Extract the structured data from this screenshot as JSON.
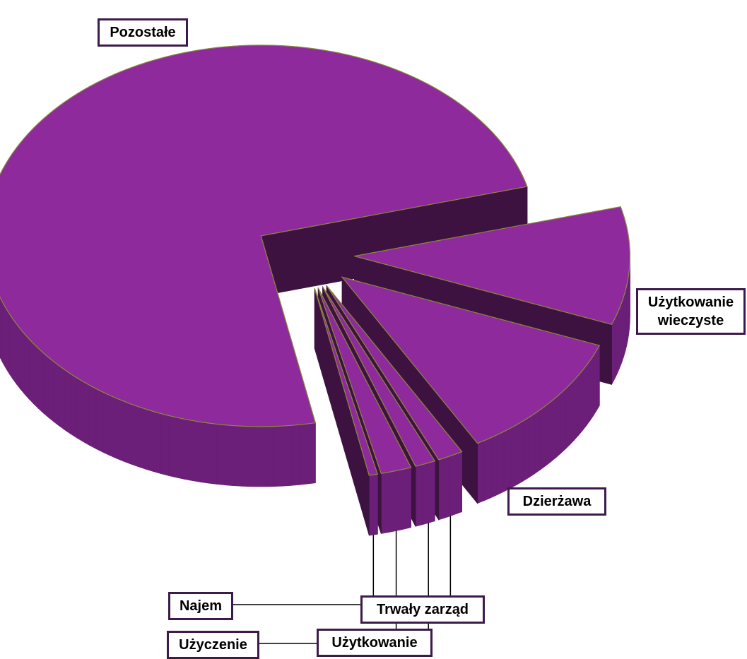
{
  "chart_data": {
    "type": "pie3d",
    "categories": [
      "Użytkowanie wieczyste",
      "Dzierżawa",
      "Trwały zarząd",
      "Użytkowanie",
      "Użyczenie",
      "Najem",
      "Pozostałe"
    ],
    "values": [
      10,
      11,
      1.5,
      1.2,
      1.8,
      0.5,
      74
    ],
    "color": "#8e2a9c"
  }
}
